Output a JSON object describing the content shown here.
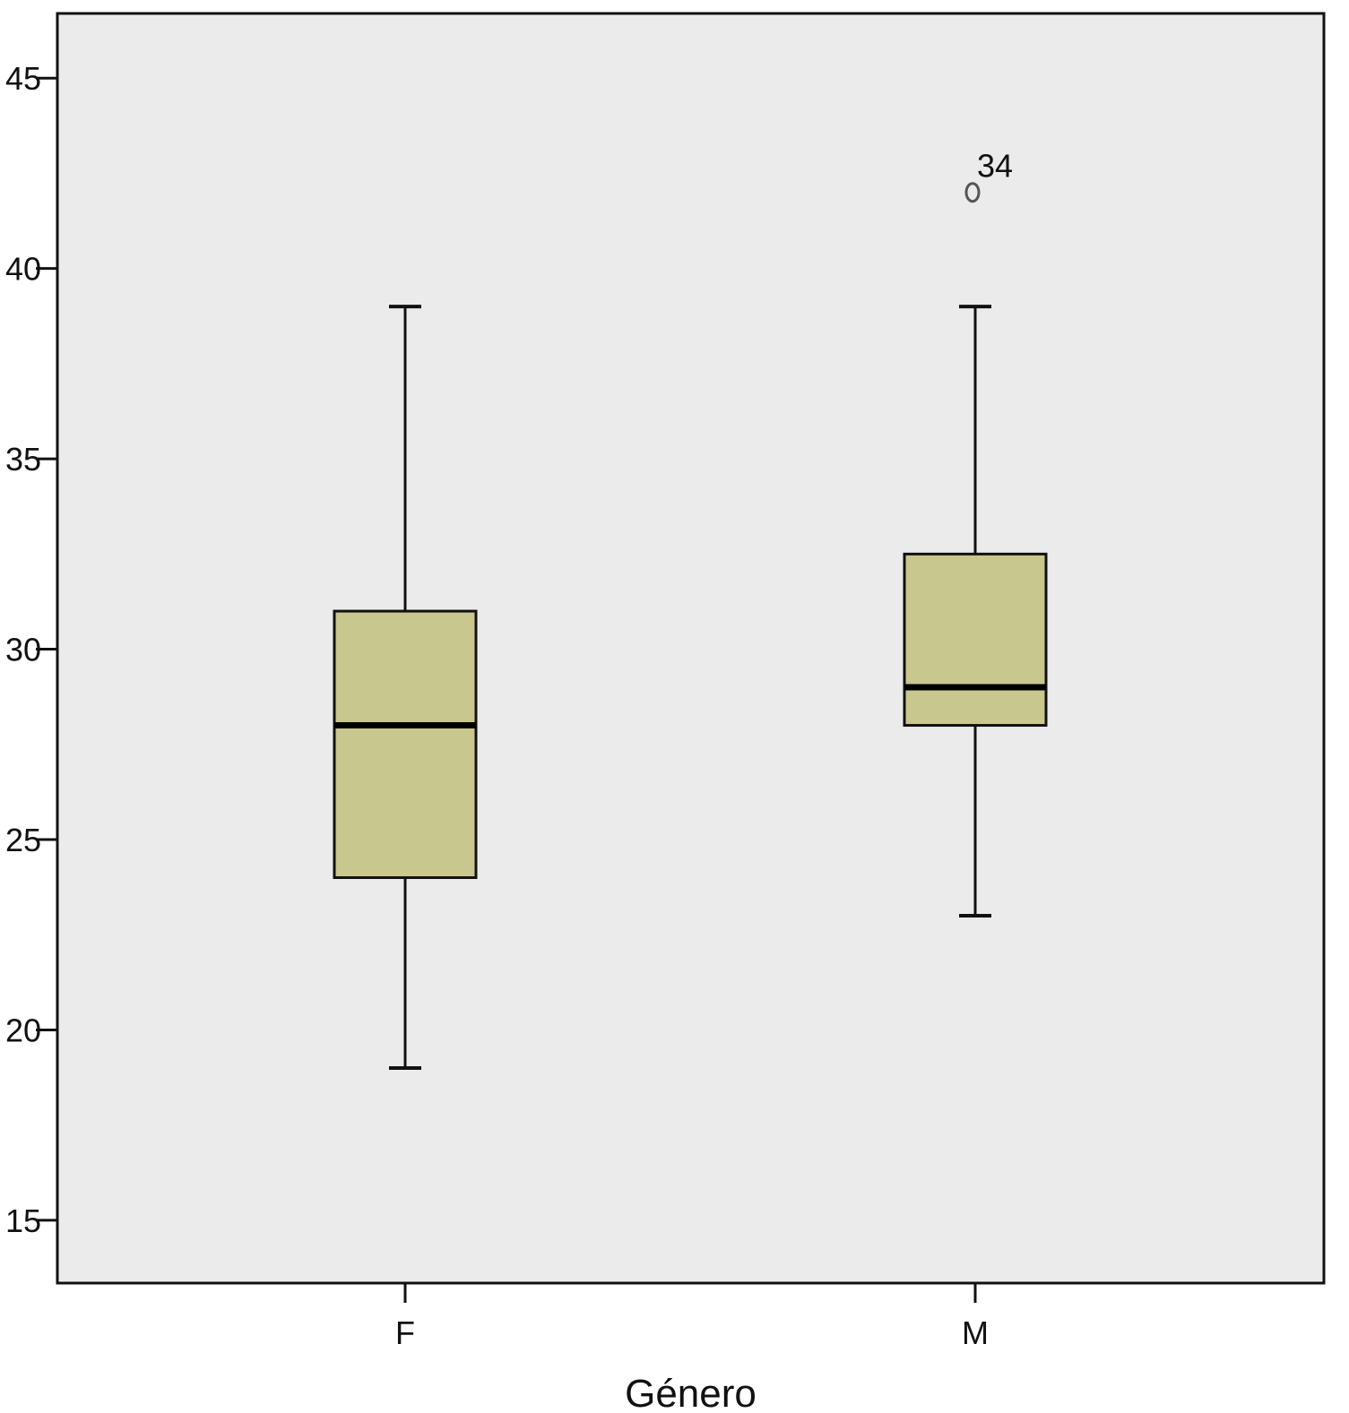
{
  "chart_data": {
    "type": "box",
    "title": "",
    "xlabel": "Género",
    "ylabel": "",
    "ylim": [
      13.35,
      46.7
    ],
    "yticks": [
      15,
      20,
      25,
      30,
      35,
      40,
      45
    ],
    "categories": [
      "F",
      "M"
    ],
    "boxes": [
      {
        "category": "F",
        "whisker_low": 19,
        "q1": 24,
        "median": 28,
        "q3": 31,
        "whisker_high": 39,
        "outliers": []
      },
      {
        "category": "M",
        "whisker_low": 23,
        "q1": 28,
        "median": 29,
        "q3": 32.5,
        "whisker_high": 39,
        "outliers": [
          {
            "value": 42,
            "label": "34"
          }
        ]
      }
    ],
    "grid": false,
    "colors": {
      "plot_background": "#ebebeb",
      "box_fill": "#c8c78e",
      "stroke": "#111111"
    }
  }
}
